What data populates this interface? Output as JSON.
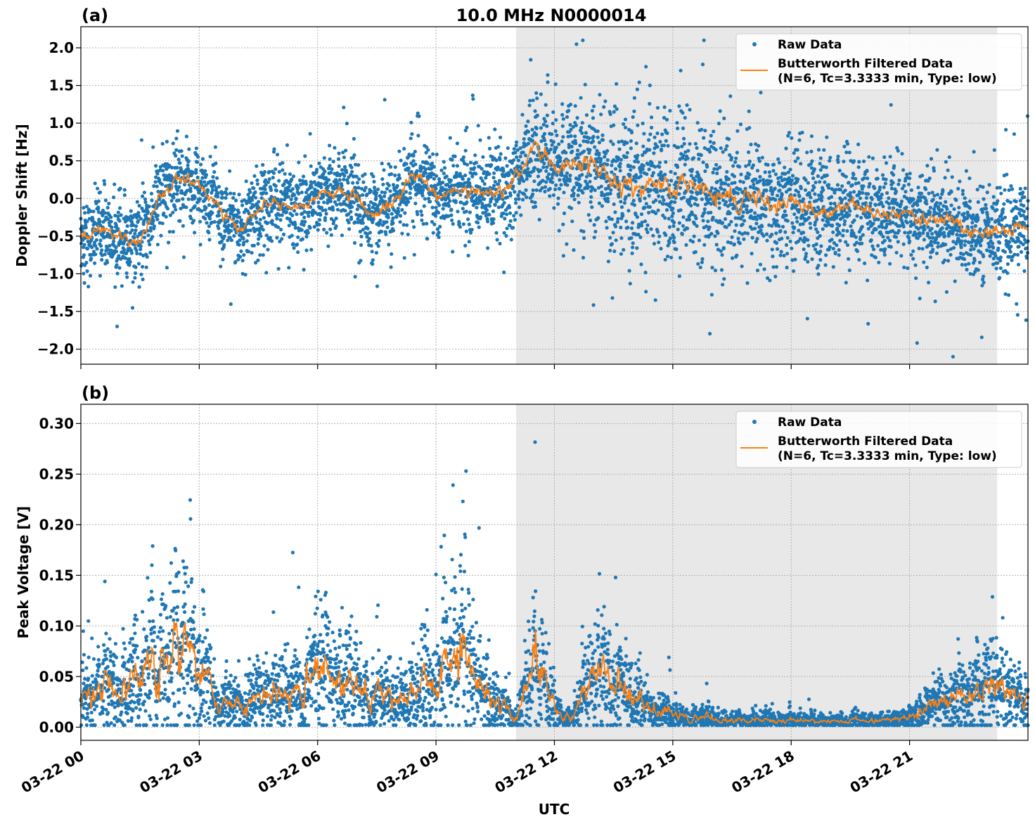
{
  "chart_data": [
    {
      "type": "scatter",
      "panel_label": "(a)",
      "title": "10.0 MHz N0000014",
      "xlabel": "",
      "ylabel": "Doppler Shift [Hz]",
      "ylim": [
        -2.2,
        2.28
      ],
      "xlim_hours": [
        0,
        24
      ],
      "yticks": [
        2.0,
        1.5,
        1.0,
        0.5,
        0.0,
        -0.5,
        -1.0,
        -1.5,
        -2.0
      ],
      "ytick_labels": [
        "2.0",
        "1.5",
        "1.0",
        "0.5",
        "0.0",
        "−0.5",
        "−1.0",
        "−1.5",
        "−2.0"
      ],
      "grid": true,
      "legend_placement": "upper-right",
      "shaded_region_hours": [
        11.03,
        23.22
      ],
      "shade_color": "#e8e8e8",
      "series": [
        {
          "name": "Raw Data",
          "color": "#1f77b4",
          "marker": "dot"
        },
        {
          "name": "Butterworth Filtered Data",
          "name_line2": "(N=6, Tc=3.3333 min, Type: low)",
          "color": "#ff7f0e",
          "marker": "line"
        }
      ],
      "filtered_trend": {
        "hours": [
          0,
          0.5,
          1,
          1.5,
          2,
          2.5,
          3,
          3.5,
          4,
          4.5,
          5,
          5.5,
          6,
          6.5,
          7,
          7.5,
          8,
          8.5,
          9,
          9.5,
          10,
          10.5,
          11,
          11.5,
          12,
          12.5,
          13,
          13.5,
          14,
          14.5,
          15,
          15.5,
          16,
          16.5,
          17,
          17.5,
          18,
          18.5,
          19,
          19.5,
          20,
          20.5,
          21,
          21.5,
          22,
          22.5,
          23,
          23.5,
          24
        ],
        "values": [
          -0.5,
          -0.4,
          -0.5,
          -0.6,
          0.0,
          0.3,
          0.15,
          -0.1,
          -0.5,
          -0.1,
          -0.1,
          -0.1,
          0.0,
          0.1,
          0.0,
          -0.3,
          0.0,
          0.35,
          0.05,
          0.1,
          0.1,
          0.05,
          0.2,
          0.7,
          0.4,
          0.5,
          0.35,
          0.2,
          0.2,
          0.15,
          0.1,
          0.2,
          0.0,
          0.0,
          0.0,
          -0.1,
          0.0,
          -0.1,
          -0.2,
          0.0,
          -0.2,
          -0.3,
          -0.2,
          -0.3,
          -0.25,
          -0.4,
          -0.4,
          -0.45,
          -0.4
        ]
      },
      "raw_spread": {
        "hours": [
          0,
          11,
          14,
          21,
          24
        ],
        "values": [
          0.25,
          0.3,
          0.5,
          0.3,
          0.3
        ]
      }
    },
    {
      "type": "scatter",
      "panel_label": "(b)",
      "xlabel": "UTC",
      "ylabel": "Peak Voltage [V]",
      "ylim": [
        -0.013,
        0.319
      ],
      "xlim_hours": [
        0,
        24
      ],
      "yticks": [
        0.3,
        0.25,
        0.2,
        0.15,
        0.1,
        0.05,
        0.0
      ],
      "ytick_labels": [
        "0.30",
        "0.25",
        "0.20",
        "0.15",
        "0.10",
        "0.05",
        "0.00"
      ],
      "xticks_hours": [
        0,
        3,
        6,
        9,
        12,
        15,
        18,
        21
      ],
      "xtick_labels": [
        "03-22 00",
        "03-22 03",
        "03-22 06",
        "03-22 09",
        "03-22 12",
        "03-22 15",
        "03-22 18",
        "03-22 21"
      ],
      "grid": true,
      "legend_placement": "upper-right",
      "shaded_region_hours": [
        11.03,
        23.22
      ],
      "series": [
        {
          "name": "Raw Data",
          "color": "#1f77b4",
          "marker": "dot"
        },
        {
          "name": "Butterworth Filtered Data",
          "name_line2": "(N=6, Tc=3.3333 min, Type: low)",
          "color": "#ff7f0e",
          "marker": "line"
        }
      ],
      "filtered_trend": {
        "hours": [
          0,
          0.5,
          1,
          1.5,
          2,
          2.5,
          3,
          3.5,
          4,
          4.5,
          5,
          5.5,
          6,
          6.5,
          7,
          7.5,
          8,
          8.5,
          9,
          9.5,
          10,
          10.5,
          11,
          11.5,
          12,
          12.5,
          13,
          13.5,
          14,
          14.5,
          15,
          15.5,
          16,
          16.5,
          17,
          17.5,
          18,
          18.5,
          19,
          19.5,
          20,
          20.5,
          21,
          21.5,
          22,
          22.5,
          23,
          23.5,
          24
        ],
        "values": [
          0.03,
          0.04,
          0.035,
          0.06,
          0.07,
          0.08,
          0.06,
          0.015,
          0.03,
          0.025,
          0.03,
          0.03,
          0.06,
          0.04,
          0.035,
          0.04,
          0.035,
          0.04,
          0.05,
          0.08,
          0.04,
          0.03,
          0.01,
          0.07,
          0.015,
          0.01,
          0.05,
          0.04,
          0.03,
          0.02,
          0.012,
          0.01,
          0.01,
          0.008,
          0.007,
          0.006,
          0.007,
          0.006,
          0.006,
          0.006,
          0.006,
          0.007,
          0.01,
          0.02,
          0.025,
          0.03,
          0.035,
          0.04,
          0.035
        ]
      }
    }
  ]
}
